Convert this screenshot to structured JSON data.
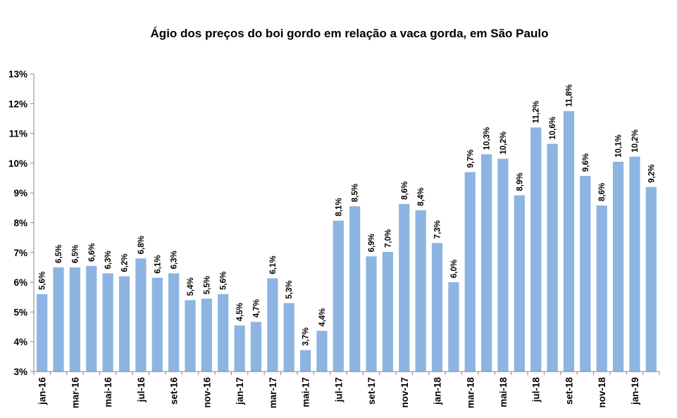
{
  "chart_data": {
    "type": "bar",
    "title": "Ágio dos preços do boi gordo em relação a vaca gorda, em São Paulo",
    "xlabel": "",
    "ylabel": "",
    "ylim": [
      3,
      13
    ],
    "yticks": [
      "3%",
      "4%",
      "5%",
      "6%",
      "7%",
      "8%",
      "9%",
      "10%",
      "11%",
      "12%",
      "13%"
    ],
    "tick_labels": [
      "jan-16",
      "mar-16",
      "mai-16",
      "jul-16",
      "set-16",
      "nov-16",
      "jan-17",
      "mar-17",
      "mai-17",
      "jul-17",
      "set-17",
      "nov-17",
      "jan-18",
      "mar-18",
      "mai-18",
      "jul-18",
      "set-18",
      "nov-18",
      "jan-19"
    ],
    "categories": [
      "jan-16",
      "fev-16",
      "mar-16",
      "abr-16",
      "mai-16",
      "jun-16",
      "jul-16",
      "ago-16",
      "set-16",
      "out-16",
      "nov-16",
      "dez-16",
      "jan-17",
      "fev-17",
      "mar-17",
      "abr-17",
      "mai-17",
      "jun-17",
      "jul-17",
      "ago-17",
      "set-17",
      "out-17",
      "nov-17",
      "dez-17",
      "jan-18",
      "fev-18",
      "mar-18",
      "abr-18",
      "mai-18",
      "jun-18",
      "jul-18",
      "ago-18",
      "set-18",
      "out-18",
      "nov-18",
      "dez-18",
      "jan-19",
      "fev-19"
    ],
    "values": [
      5.6,
      6.5,
      6.5,
      6.55,
      6.3,
      6.2,
      6.8,
      6.15,
      6.3,
      5.4,
      5.45,
      5.6,
      4.55,
      4.67,
      6.13,
      5.3,
      3.72,
      4.37,
      8.07,
      8.55,
      6.87,
      7.02,
      8.63,
      8.42,
      7.32,
      6.0,
      9.7,
      10.3,
      10.15,
      8.92,
      11.2,
      10.65,
      11.75,
      9.57,
      8.58,
      10.05,
      10.22,
      9.2
    ],
    "data_labels": [
      "5,6%",
      "6,5%",
      "6,5%",
      "6,6%",
      "6,3%",
      "6,2%",
      "6,8%",
      "6,1%",
      "6,3%",
      "5,4%",
      "5,5%",
      "5,6%",
      "4,5%",
      "4,7%",
      "6,1%",
      "5,3%",
      "3,7%",
      "4,4%",
      "8,1%",
      "8,5%",
      "6,9%",
      "7,0%",
      "8,6%",
      "8,4%",
      "7,3%",
      "6,0%",
      "9,7%",
      "10,3%",
      "10,2%",
      "8,9%",
      "11,2%",
      "10,6%",
      "11,8%",
      "9,6%",
      "8,6%",
      "10,1%",
      "10,2%",
      "9,2%"
    ],
    "bar_color": "#8DB4E2",
    "axis_color": "#868686",
    "grid": false
  }
}
